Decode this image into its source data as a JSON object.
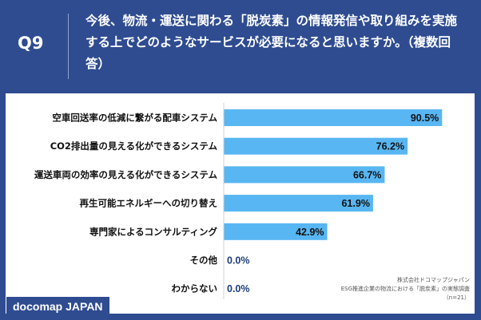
{
  "header": {
    "question_number": "Q9",
    "question_text": "今後、物流・運送に関わる「脱炭素」の情報発信や取り組みを実施する上でどのようなサービスが必要になると思いますか。（複数回答）"
  },
  "colors": {
    "header_bg": "#2f4c91",
    "bar": "#58b6f2",
    "label_text": "#111111",
    "zero_text": "#1c3d7a"
  },
  "chart_data": {
    "type": "bar",
    "orientation": "horizontal",
    "categories": [
      "空車回送率の低減に繋がる配車システム",
      "CO2排出量の見える化ができるシステム",
      "運送車両の効率の見える化ができるシステム",
      "再生可能エネルギーへの切り替え",
      "専門家によるコンサルティング",
      "その他",
      "わからない"
    ],
    "values": [
      90.5,
      76.2,
      66.7,
      61.9,
      42.9,
      0.0,
      0.0
    ],
    "value_labels": [
      "90.5%",
      "76.2%",
      "66.7%",
      "61.9%",
      "42.9%",
      "0.0%",
      "0.0%"
    ],
    "xlim": [
      0,
      100
    ],
    "grid": false
  },
  "footer": {
    "brand": "docomap JAPAN",
    "source_company": "株式会社ドコマップジャパン",
    "source_title": "ESG推進企業の物流における「脱炭素」の実態調査",
    "source_n": "（n=21）"
  }
}
